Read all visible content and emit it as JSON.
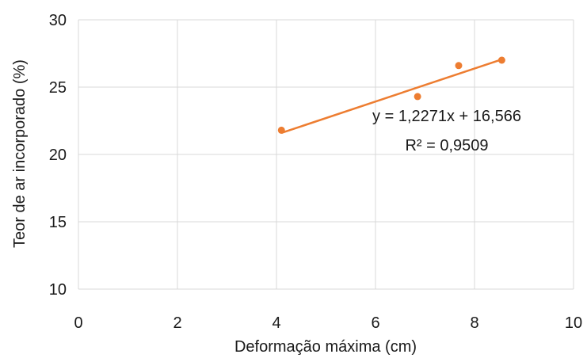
{
  "chart_data": {
    "type": "scatter",
    "title": "",
    "xlabel": "Deformação máxima (cm)",
    "ylabel": "Teor de ar incorporado (%)",
    "xlim": [
      0,
      10
    ],
    "ylim": [
      10,
      30
    ],
    "xticks": [
      0,
      2,
      4,
      6,
      8,
      10
    ],
    "yticks": [
      10,
      15,
      20,
      25,
      30
    ],
    "grid": true,
    "legend": "none",
    "series": [
      {
        "color": "#ED7D31",
        "points": [
          {
            "x": 4.1,
            "y": 21.8
          },
          {
            "x": 6.85,
            "y": 24.3
          },
          {
            "x": 7.68,
            "y": 26.6
          },
          {
            "x": 8.55,
            "y": 27.0
          }
        ],
        "trendline": {
          "type": "linear",
          "slope": 1.2271,
          "intercept": 16.566,
          "x_range": [
            4.1,
            8.55
          ],
          "equation_label": "y = 1,2271x + 16,566",
          "r2_label": "R² = 0,9509"
        }
      }
    ]
  }
}
